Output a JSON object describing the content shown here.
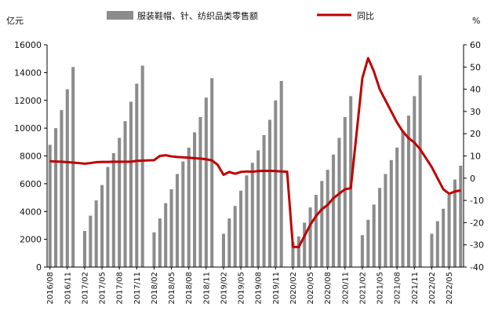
{
  "chart_data": {
    "type": "bar+line",
    "left_unit": "亿元",
    "right_unit": "%",
    "legend": {
      "bar_label": "服装鞋帽、针、纺织品类零售额",
      "line_label": "同比",
      "bar_color": "#8c8c8c",
      "line_color": "#c00000"
    },
    "y_left": {
      "min": 0,
      "max": 16000,
      "step": 2000,
      "ticks": [
        "0",
        "2000",
        "4000",
        "6000",
        "8000",
        "10000",
        "12000",
        "14000",
        "16000"
      ]
    },
    "y_right": {
      "min": -40,
      "max": 60,
      "step": 10,
      "ticks": [
        "-40",
        "-30",
        "-20",
        "-10",
        "0",
        "10",
        "20",
        "30",
        "40",
        "50",
        "60"
      ]
    },
    "start": "2016/08",
    "x_tick_labels": [
      "2016/08",
      "2016/11",
      "2017/02",
      "2017/05",
      "2017/08",
      "2017/11",
      "2018/02",
      "2018/05",
      "2018/08",
      "2018/11",
      "2019/02",
      "2019/05",
      "2019/08",
      "2019/11",
      "2020/02",
      "2020/05",
      "2020/08",
      "2020/11",
      "2021/02",
      "2021/05",
      "2021/08",
      "2021/11",
      "2022/02",
      "2022/05"
    ],
    "series": [
      {
        "name": "服装鞋帽、针、纺织品类零售额",
        "kind": "bar",
        "values": [
          8800,
          10000,
          11300,
          12800,
          14400,
          null,
          2600,
          3700,
          4800,
          5900,
          7200,
          8200,
          9300,
          10500,
          11900,
          13200,
          14500,
          null,
          2500,
          3500,
          4600,
          5600,
          6700,
          7600,
          8600,
          9700,
          10800,
          12200,
          13600,
          null,
          2400,
          3500,
          4400,
          5500,
          6600,
          7500,
          8400,
          9500,
          10600,
          12000,
          13400,
          null,
          1800,
          2200,
          3200,
          4300,
          5200,
          6200,
          7000,
          8100,
          9300,
          10800,
          12300,
          null,
          2300,
          3400,
          4500,
          5700,
          6700,
          7700,
          8600,
          9800,
          10900,
          12300,
          13800,
          null,
          2400,
          3300,
          4200,
          5200,
          6300,
          7300
        ]
      },
      {
        "name": "同比",
        "kind": "line",
        "values": [
          7.6,
          7.5,
          7.4,
          7.2,
          7.0,
          6.8,
          6.5,
          6.8,
          7.2,
          7.3,
          7.3,
          7.4,
          7.4,
          7.4,
          7.4,
          7.8,
          7.9,
          8.0,
          8.1,
          10.0,
          10.3,
          9.8,
          9.5,
          9.4,
          9.2,
          9.0,
          8.8,
          8.5,
          8.0,
          6.0,
          1.5,
          2.8,
          2.0,
          2.8,
          3.0,
          2.9,
          3.2,
          3.3,
          3.3,
          3.2,
          3.0,
          2.9,
          -30.9,
          -31.0,
          -26.0,
          -21.0,
          -17.0,
          -14.0,
          -12.0,
          -9.0,
          -7.0,
          -5.0,
          -4.5,
          20.0,
          45.0,
          54.0,
          48.0,
          40.0,
          35.0,
          30.0,
          25.0,
          21.0,
          18.0,
          16.0,
          13.0,
          9.0,
          5.0,
          0.0,
          -5.0,
          -7.0,
          -6.0,
          -5.5
        ]
      }
    ]
  }
}
